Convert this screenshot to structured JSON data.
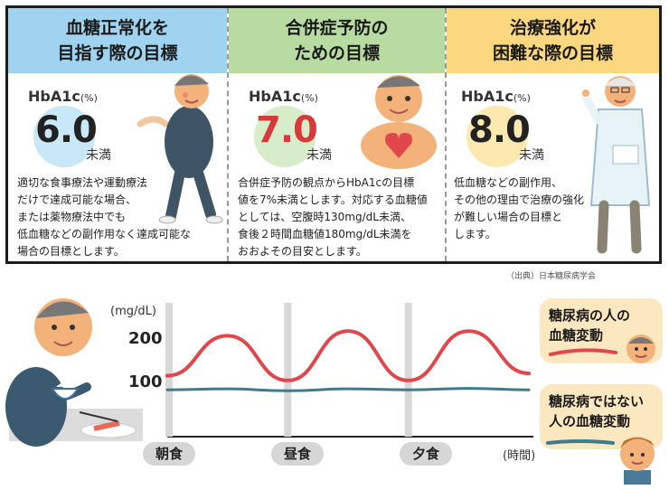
{
  "columns": [
    {
      "heading": "血糖正常化を\n目指す際の目標",
      "hba_label": "HbA1c",
      "hba_unit": "(%)",
      "value": "6.0",
      "under": "未満",
      "value_color": "#222222",
      "circle_color": "#c8e7f7",
      "description": "適切な食事療法や運動療法\nだけで達成可能な場合、\nまたは薬物療法中でも\n低血糖などの副作用なく達成可能な\n場合の目標とします。"
    },
    {
      "heading": "合併症予防の\nための目標",
      "hba_label": "HbA1c",
      "hba_unit": "(%)",
      "value": "7.0",
      "under": "未満",
      "value_color": "#d63a3a",
      "circle_color": "#d7ecc8",
      "description": "合併症予防の観点からHbA1cの目標\n値を7%未満とします。対応する血糖値\nとしては、空腹時130mg/dL未満、\n食後２時間血糖値180mg/dL未満を\nおおよその目安とします。"
    },
    {
      "heading": "治療強化が\n困難な際の目標",
      "hba_label": "HbA1c",
      "hba_unit": "(%)",
      "value": "8.0",
      "under": "未満",
      "value_color": "#222222",
      "circle_color": "#fde8b0",
      "description": "低血糖などの副作用、\nその他の理由で治療の強化\nが難しい場合の目標と\nします。"
    }
  ],
  "source": "（出典）日本糖尿病学会",
  "chart": {
    "y_unit": "(mg/dL)",
    "y_ticks": [
      "200",
      "100"
    ],
    "x_unit": "(時間)",
    "meals": [
      "朝食",
      "昼食",
      "夕食"
    ],
    "legend_diabetic": "糖尿病の人の\n血糖変動",
    "legend_normal": "糖尿病ではない\n人の血糖変動",
    "colors": {
      "diabetic": "#e0474a",
      "normal": "#3e7b8e"
    }
  },
  "chart_data": {
    "type": "line",
    "xlabel": "(時間)",
    "ylabel": "(mg/dL)",
    "categories": [
      "朝食",
      "昼食",
      "夕食"
    ],
    "series": [
      {
        "name": "糖尿病の人の血糖変動",
        "x": [
          0,
          1,
          2,
          3,
          4,
          5,
          6
        ],
        "values": [
          120,
          205,
          110,
          215,
          110,
          215,
          125
        ]
      },
      {
        "name": "糖尿病ではない人の血糖変動",
        "x": [
          0,
          1,
          2,
          3,
          4,
          5,
          6
        ],
        "values": [
          90,
          92,
          88,
          92,
          90,
          93,
          90
        ]
      }
    ]
  },
  "icons": {
    "col1": "walking-man-icon",
    "col2": "heart-man-icon",
    "col3": "doctor-icon",
    "chart_left": "man-eating-icon",
    "legend1": "older-man-icon",
    "legend2": "young-man-icon"
  }
}
